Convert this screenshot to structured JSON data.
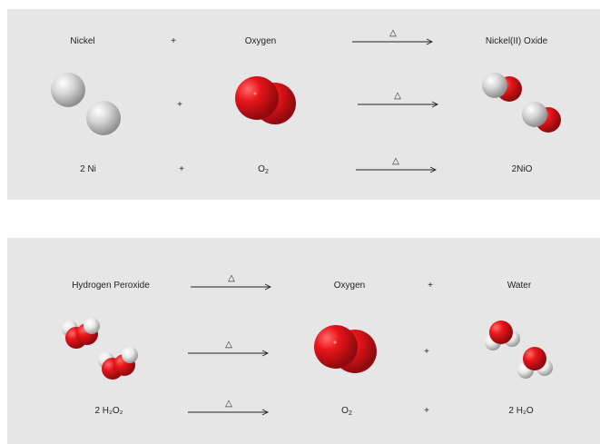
{
  "reaction1": {
    "reactant1_name": "Nickel",
    "plus": "+",
    "reactant2_name": "Oxygen",
    "arrow_symbol": "△",
    "product_name": "Nickel(II) Oxide",
    "reactant1_formula": "2 Ni",
    "reactant2_formula_main": "O",
    "reactant2_formula_sub": "2",
    "product_formula": "2NiO"
  },
  "reaction2": {
    "reactant_name": "Hydrogen Peroxide",
    "arrow_symbol": "△",
    "product1_name": "Oxygen",
    "plus": "+",
    "product2_name": "Water",
    "reactant_formula": "2 H₂O₂",
    "product1_formula_main": "O",
    "product1_formula_sub": "2",
    "product2_formula": "2 H₂O"
  },
  "colors": {
    "panel": "#e6e6e7",
    "oxygen": "#e8151b",
    "nickel": "#d0d0d0",
    "hydrogen": "#eeeeee",
    "text": "#231f20"
  }
}
